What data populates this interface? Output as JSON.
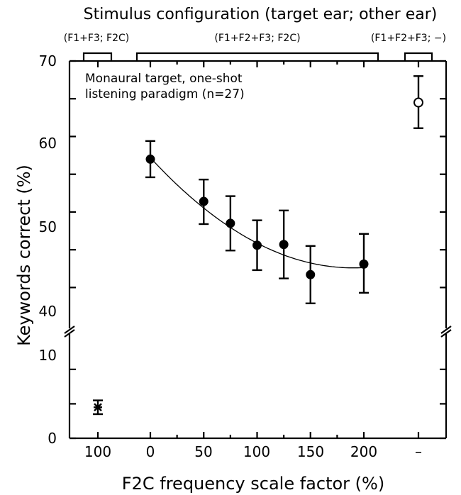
{
  "chart_data": {
    "type": "scatter",
    "top_title": "Stimulus configuration (target ear; other ear)",
    "xlabel": "F2C frequency scale factor (%)",
    "ylabel": "Keywords correct (%)",
    "annotation_lines": [
      "Monaural target, one-shot",
      "listening paradigm (n=27)"
    ],
    "config_groups": [
      {
        "label": "(F1+F3; F2C)",
        "x_categories": [
          "100"
        ]
      },
      {
        "label": "(F1+F2+F3; F2C)",
        "x_categories": [
          "0",
          "50",
          "75",
          "100",
          "125",
          "150",
          "200"
        ]
      },
      {
        "label": "(F1+F2+F3; −)",
        "x_categories": [
          "–"
        ]
      }
    ],
    "x_tick_labels": [
      "100",
      "0",
      "50",
      "100",
      "150",
      "200",
      "–"
    ],
    "y_ticks_upper": [
      "70",
      "60",
      "50",
      "40"
    ],
    "y_ticks_lower": [
      "10",
      "0"
    ],
    "ylim_upper": [
      36,
      70
    ],
    "ylim_lower": [
      0,
      14
    ],
    "axis_break": true,
    "series": [
      {
        "marker": "filled-circle",
        "x": [
          0,
          50,
          75,
          100,
          125,
          150,
          200
        ],
        "y": [
          57.0,
          51.4,
          48.5,
          45.6,
          45.7,
          41.7,
          43.1
        ],
        "err_low": [
          54.6,
          48.4,
          44.9,
          42.3,
          41.2,
          37.9,
          39.3
        ],
        "err_high": [
          59.4,
          54.3,
          52.1,
          48.9,
          50.2,
          45.5,
          47.1
        ]
      },
      {
        "marker": "asterisk",
        "category": "100",
        "y": 4.5,
        "err_low": 3.5,
        "err_high": 5.5
      },
      {
        "marker": "open-circle",
        "category": "–",
        "y": 64.5,
        "err_low": 61.1,
        "err_high": 68.0
      }
    ],
    "fit_curve": {
      "type": "quadratic",
      "x_range": [
        0,
        200
      ],
      "y_at_0": 57.2,
      "y_min": 42.6,
      "x_at_min": 190
    },
    "grid": false,
    "colors": {
      "ink": "#000000",
      "background": "#ffffff"
    }
  }
}
